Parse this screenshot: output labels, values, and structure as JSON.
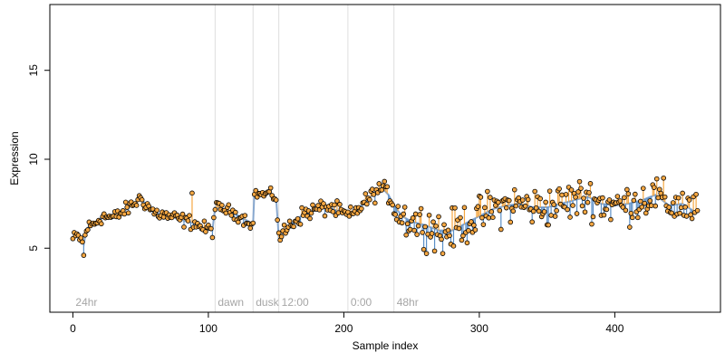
{
  "chart_data": {
    "type": "scatter",
    "title": "",
    "xlabel": "Sample index",
    "ylabel": "Expression",
    "xlim": [
      -17,
      478
    ],
    "ylim": [
      1.4,
      18.7
    ],
    "x_ticks": [
      0,
      100,
      200,
      300,
      400
    ],
    "y_ticks": [
      5,
      10,
      15
    ],
    "grid": false,
    "legend": "none",
    "colors": {
      "points_fill": "#f5a742",
      "points_stroke": "#000000",
      "fit_line": "#88a8cf",
      "dev_up": "#f5a742",
      "dev_down": "#5b8fc7",
      "region_line": "#dedede",
      "region_text": "#a6a6a6"
    },
    "regions": [
      {
        "label": "24hr",
        "start": 0,
        "boundary": 105
      },
      {
        "label": "dawn",
        "start": 105,
        "boundary": 133
      },
      {
        "label": "dusk",
        "start": 133,
        "boundary": 152
      },
      {
        "label": "12:00",
        "start": 152,
        "boundary": 203
      },
      {
        "label": "0:00",
        "start": 203,
        "boundary": 237
      },
      {
        "label": "48hr",
        "start": 237,
        "boundary": null
      }
    ],
    "anchors": [
      [
        0,
        5.5
      ],
      [
        4,
        5.7
      ],
      [
        8,
        5.2
      ],
      [
        10,
        6.1
      ],
      [
        16,
        6.4
      ],
      [
        22,
        6.8
      ],
      [
        30,
        6.7
      ],
      [
        40,
        7.2
      ],
      [
        50,
        7.8
      ],
      [
        60,
        7.0
      ],
      [
        70,
        6.8
      ],
      [
        80,
        6.6
      ],
      [
        90,
        6.4
      ],
      [
        97,
        6.1
      ],
      [
        103,
        6.0
      ],
      [
        105,
        7.3
      ],
      [
        112,
        7.2
      ],
      [
        118,
        7.0
      ],
      [
        125,
        6.7
      ],
      [
        130,
        6.5
      ],
      [
        133,
        6.3
      ],
      [
        134,
        8.1
      ],
      [
        140,
        8.0
      ],
      [
        145,
        8.1
      ],
      [
        150,
        7.8
      ],
      [
        152,
        5.6
      ],
      [
        155,
        5.8
      ],
      [
        158,
        6.1
      ],
      [
        163,
        6.5
      ],
      [
        170,
        6.9
      ],
      [
        180,
        7.2
      ],
      [
        190,
        7.3
      ],
      [
        198,
        7.0
      ],
      [
        203,
        6.8
      ],
      [
        207,
        6.9
      ],
      [
        213,
        7.4
      ],
      [
        220,
        7.9
      ],
      [
        228,
        8.4
      ],
      [
        233,
        8.0
      ],
      [
        237,
        7.4
      ],
      [
        243,
        6.8
      ],
      [
        250,
        6.5
      ],
      [
        260,
        6.3
      ],
      [
        270,
        6.0
      ],
      [
        280,
        6.0
      ],
      [
        290,
        6.4
      ],
      [
        300,
        6.8
      ],
      [
        310,
        7.2
      ],
      [
        320,
        7.4
      ],
      [
        330,
        7.5
      ],
      [
        340,
        7.3
      ],
      [
        350,
        7.3
      ],
      [
        360,
        7.5
      ],
      [
        370,
        7.7
      ],
      [
        380,
        7.9
      ],
      [
        390,
        7.5
      ],
      [
        400,
        7.4
      ],
      [
        410,
        7.5
      ],
      [
        420,
        7.7
      ],
      [
        430,
        8.0
      ],
      [
        440,
        7.4
      ],
      [
        450,
        7.5
      ],
      [
        460,
        7.0
      ]
    ],
    "noise_by_region": [
      0.3,
      0.25,
      0.2,
      0.35,
      0.35,
      0.85
    ],
    "n_points": 462
  }
}
